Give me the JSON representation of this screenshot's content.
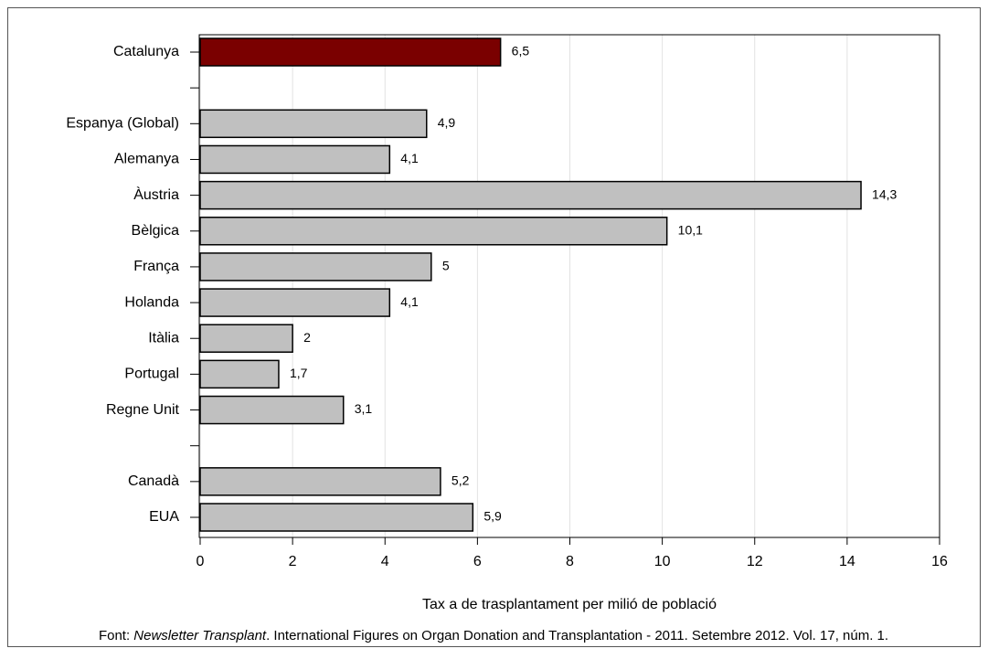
{
  "chart_data": {
    "type": "barh",
    "categories": [
      "Catalunya",
      null,
      "Espanya (Global)",
      "Alemanya",
      "Àustria",
      "Bèlgica",
      "França",
      "Holanda",
      "Itàlia",
      "Portugal",
      "Regne Unit",
      null,
      "Canadà",
      "EUA"
    ],
    "values": [
      6.5,
      null,
      4.9,
      4.1,
      14.3,
      10.1,
      5,
      4.1,
      2,
      1.7,
      3.1,
      null,
      5.2,
      5.9
    ],
    "value_labels": [
      "6,5",
      null,
      "4,9",
      "4,1",
      "14,3",
      "10,1",
      "5",
      "4,1",
      "2",
      "1,7",
      "3,1",
      null,
      "5,2",
      "5,9"
    ],
    "colors": [
      "#7a0000",
      null,
      "#c0c0c0",
      "#c0c0c0",
      "#c0c0c0",
      "#c0c0c0",
      "#c0c0c0",
      "#c0c0c0",
      "#c0c0c0",
      "#c0c0c0",
      "#c0c0c0",
      null,
      "#c0c0c0",
      "#c0c0c0"
    ],
    "xlim": [
      0,
      16
    ],
    "xticks": [
      0,
      2,
      4,
      6,
      8,
      10,
      12,
      14,
      16
    ],
    "grid": true,
    "xlabel": "Tax a de trasplantament per milió de població",
    "source": {
      "prefix": "Font: ",
      "italic": "Newsletter Transplant",
      "text": ". International Figures on Organ Donation and Transplantation - 2011. Setembre 2012. Vol. 17, núm. 1."
    }
  }
}
